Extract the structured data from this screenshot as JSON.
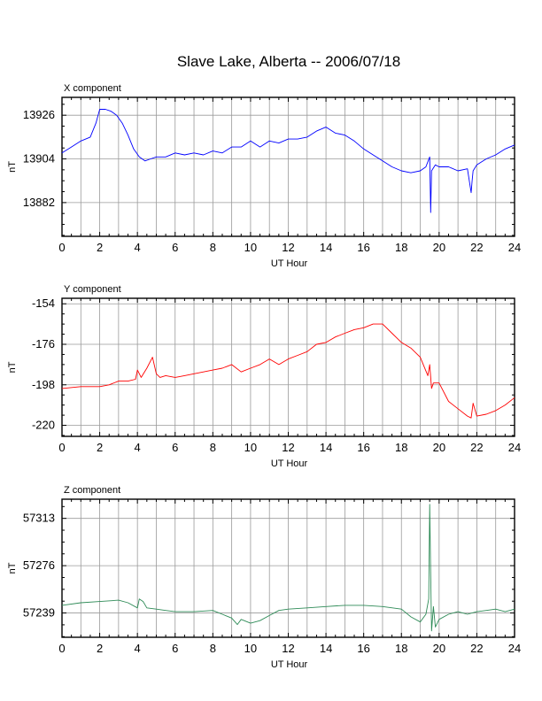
{
  "title": "Slave Lake, Alberta -- 2006/07/18",
  "chart_data": [
    {
      "type": "line",
      "panel_title": "X component",
      "xlabel": "UT Hour",
      "ylabel": "nT",
      "xlim": [
        0,
        24
      ],
      "ylim": [
        13865,
        13935
      ],
      "x_ticks": [
        0,
        2,
        4,
        6,
        8,
        10,
        12,
        14,
        16,
        18,
        20,
        22,
        24
      ],
      "y_ticks": [
        13882,
        13904,
        13926
      ],
      "grid": true,
      "color": "#0000ff",
      "series": [
        {
          "x": [
            0,
            0.5,
            1,
            1.5,
            1.8,
            2,
            2.3,
            2.6,
            2.9,
            3.2,
            3.5,
            3.8,
            4.1,
            4.4,
            4.7,
            5,
            5.5,
            6,
            6.5,
            7,
            7.5,
            8,
            8.5,
            9,
            9.5,
            10,
            10.5,
            11,
            11.5,
            12,
            12.5,
            13,
            13.5,
            14,
            14.5,
            15,
            15.5,
            16,
            16.5,
            17,
            17.5,
            18,
            18.5,
            19,
            19.3,
            19.5,
            19.55,
            19.6,
            19.8,
            20,
            20.5,
            21,
            21.5,
            21.7,
            21.75,
            21.8,
            22,
            22.5,
            23,
            23.5,
            24
          ],
          "y": [
            13907,
            13910,
            13913,
            13915,
            13922,
            13929,
            13929,
            13928,
            13926,
            13922,
            13916,
            13909,
            13905,
            13903,
            13904,
            13905,
            13905,
            13907,
            13906,
            13907,
            13906,
            13908,
            13907,
            13910,
            13910,
            13913,
            13910,
            13913,
            13912,
            13914,
            13914,
            13915,
            13918,
            13920,
            13917,
            13916,
            13913,
            13909,
            13906,
            13903,
            13900,
            13898,
            13897,
            13898,
            13900,
            13905,
            13877,
            13898,
            13901,
            13900,
            13900,
            13898,
            13899,
            13887,
            13893,
            13898,
            13901,
            13904,
            13906,
            13909,
            13911
          ]
        }
      ]
    },
    {
      "type": "line",
      "panel_title": "Y component",
      "xlabel": "UT Hour",
      "ylabel": "nT",
      "xlim": [
        0,
        24
      ],
      "ylim": [
        -226,
        -151
      ],
      "x_ticks": [
        0,
        2,
        4,
        6,
        8,
        10,
        12,
        14,
        16,
        18,
        20,
        22,
        24
      ],
      "y_ticks": [
        -154,
        -176,
        -198,
        -220
      ],
      "grid": true,
      "color": "#ff0000",
      "series": [
        {
          "x": [
            0,
            1,
            2,
            2.5,
            3,
            3.5,
            3.9,
            4,
            4.2,
            4.5,
            4.8,
            5,
            5.2,
            5.5,
            6,
            6.5,
            7,
            7.5,
            8,
            8.5,
            9,
            9.5,
            10,
            10.5,
            11,
            11.5,
            12,
            12.5,
            13,
            13.5,
            14,
            14.5,
            15,
            15.5,
            16,
            16.5,
            17,
            17.5,
            18,
            18.5,
            19,
            19.4,
            19.5,
            19.6,
            19.7,
            20,
            20.5,
            21,
            21.5,
            21.7,
            21.8,
            22,
            22.5,
            23,
            23.5,
            24
          ],
          "y": [
            -200,
            -199,
            -199,
            -198,
            -196,
            -196,
            -195,
            -190,
            -194,
            -189,
            -183,
            -192,
            -194,
            -193,
            -194,
            -193,
            -192,
            -191,
            -190,
            -189,
            -187,
            -191,
            -189,
            -187,
            -184,
            -187,
            -184,
            -182,
            -180,
            -176,
            -175,
            -172,
            -170,
            -168,
            -167,
            -165,
            -165,
            -170,
            -175,
            -178,
            -183,
            -193,
            -187,
            -200,
            -197,
            -197,
            -207,
            -211,
            -215,
            -216,
            -208,
            -215,
            -214,
            -212,
            -209,
            -205
          ]
        }
      ]
    },
    {
      "type": "line",
      "panel_title": "Z component",
      "xlabel": "UT Hour",
      "ylabel": "nT",
      "xlim": [
        0,
        24
      ],
      "ylim": [
        57220,
        57328
      ],
      "x_ticks": [
        0,
        2,
        4,
        6,
        8,
        10,
        12,
        14,
        16,
        18,
        20,
        22,
        24
      ],
      "y_ticks": [
        57239,
        57276,
        57313
      ],
      "grid": true,
      "color": "#2e8b57",
      "series": [
        {
          "x": [
            0,
            1,
            2,
            3,
            3.5,
            4,
            4.1,
            4.3,
            4.5,
            5,
            5.5,
            6,
            7,
            8,
            8.5,
            9,
            9.3,
            9.5,
            10,
            10.5,
            11,
            11.5,
            12,
            13,
            14,
            15,
            16,
            17,
            18,
            18.5,
            19,
            19.3,
            19.45,
            19.5,
            19.55,
            19.6,
            19.7,
            19.8,
            20,
            20.5,
            21,
            21.5,
            22,
            22.5,
            23,
            23.5,
            24
          ],
          "y": [
            57245,
            57247,
            57248,
            57249,
            57247,
            57243,
            57250,
            57248,
            57243,
            57242,
            57241,
            57240,
            57240,
            57241,
            57238,
            57235,
            57230,
            57234,
            57231,
            57233,
            57237,
            57241,
            57242,
            57243,
            57244,
            57245,
            57245,
            57244,
            57242,
            57236,
            57232,
            57238,
            57250,
            57324,
            57270,
            57225,
            57244,
            57228,
            57234,
            57238,
            57240,
            57238,
            57240,
            57241,
            57242,
            57240,
            57242
          ]
        }
      ]
    }
  ]
}
